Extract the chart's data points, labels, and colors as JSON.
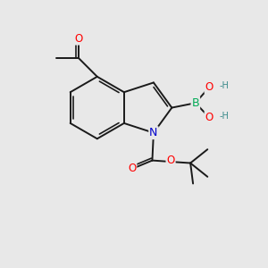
{
  "background_color": "#e8e8e8",
  "bond_color": "#1a1a1a",
  "bond_width": 1.4,
  "atom_colors": {
    "O": "#ff0000",
    "N": "#0000cc",
    "B": "#00aa55",
    "H": "#3a8a8a"
  },
  "font_size": 8.5,
  "fig_bg": "#e8e8e8",
  "xlim": [
    0,
    10
  ],
  "ylim": [
    0,
    10
  ]
}
